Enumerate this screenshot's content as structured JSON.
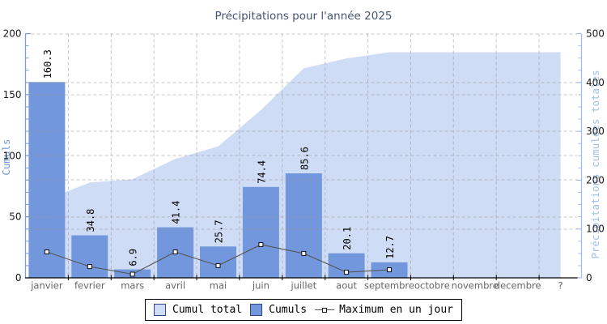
{
  "title": "Précipitations pour l'année 2025",
  "axes": {
    "left": {
      "label": "Cumuls",
      "ticks": [
        "0",
        "50",
        "100",
        "150",
        "200"
      ]
    },
    "right": {
      "label": "Précipitations cumulées totales",
      "ticks": [
        "0",
        "100",
        "200",
        "300",
        "400",
        "500"
      ]
    },
    "x": {
      "labels": [
        "janvier",
        "fevrier",
        "mars",
        "avril",
        "mai",
        "juin",
        "juillet",
        "aout",
        "septembre",
        "octobre",
        "novembre",
        "decembre",
        "?"
      ]
    }
  },
  "legend": {
    "items": [
      {
        "label": "Cumul total",
        "type": "area"
      },
      {
        "label": "Cumuls",
        "type": "bar"
      },
      {
        "label": "Maximum en un jour",
        "type": "line"
      }
    ]
  },
  "colors": {
    "bar": "#7397dc",
    "area": "#cfdcf6",
    "line": "#555555",
    "marker_fill": "#ffffff",
    "marker_stroke": "#111111",
    "left_axis": "#7b9cd9",
    "right_axis": "#a3c0e8",
    "x_axis": "#000000",
    "grid": "#999999",
    "title_text": "#475470",
    "month_text": "#666666",
    "tick_text": "#1a1a1a",
    "bar_label_text": "#000000"
  },
  "chart_data": {
    "type": "bar",
    "title": "Précipitations pour l'année 2025",
    "categories": [
      "janvier",
      "fevrier",
      "mars",
      "avril",
      "mai",
      "juin",
      "juillet",
      "aout",
      "septembre",
      "octobre",
      "novembre",
      "decembre",
      "?"
    ],
    "series": [
      {
        "name": "Cumul total",
        "type": "area",
        "axis": "right",
        "color": "#cfdcf6",
        "values": [
          160.3,
          195.1,
          202.0,
          243.4,
          269.1,
          343.5,
          429.1,
          449.2,
          461.9,
          461.9,
          461.9,
          461.9,
          461.9
        ]
      },
      {
        "name": "Cumuls",
        "type": "bar",
        "axis": "left",
        "color": "#7397dc",
        "values": [
          160.3,
          34.8,
          6.9,
          41.4,
          25.7,
          74.4,
          85.6,
          20.1,
          12.7,
          null,
          null,
          null,
          null
        ],
        "labels": [
          "160.3",
          "34.8",
          "6.9",
          "41.4",
          "25.7",
          "74.4",
          "85.6",
          "20.1",
          "12.7",
          null,
          null,
          null,
          null
        ]
      },
      {
        "name": "Maximum en un jour",
        "type": "line",
        "axis": "left",
        "color": "#555555",
        "values": [
          21.2,
          9.2,
          3.0,
          21.2,
          10.0,
          27.2,
          20.0,
          4.6,
          6.6,
          null,
          null,
          null,
          null
        ]
      }
    ],
    "xlabel": "",
    "ylabel_left": "Cumuls",
    "ylabel_right": "Précipitations cumulées totales",
    "ylim_left": [
      0,
      200
    ],
    "ylim_right": [
      0,
      500
    ],
    "grid": true,
    "legend_position": "bottom"
  }
}
